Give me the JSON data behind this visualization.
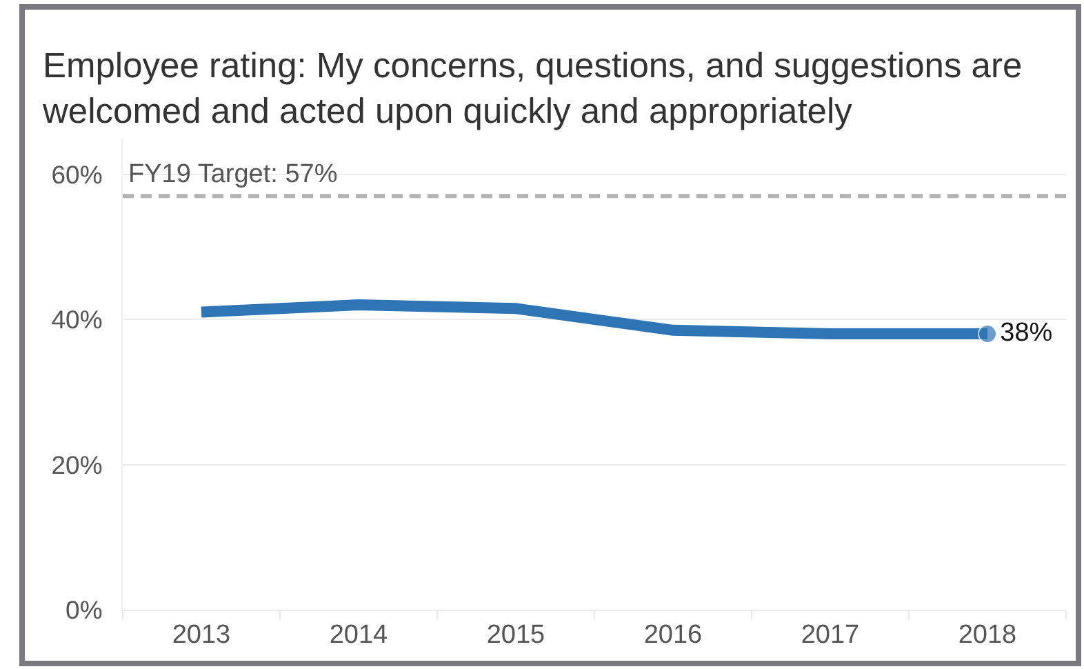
{
  "chart_data": {
    "type": "line",
    "title": "Employee rating: My concerns, questions, and suggestions are\nwelcomed and acted upon quickly and appropriately",
    "categories": [
      "2013",
      "2014",
      "2015",
      "2016",
      "2017",
      "2018"
    ],
    "series": [
      {
        "color": "#2e75b6",
        "values": [
          41,
          42,
          41.5,
          38.5,
          38,
          38
        ],
        "value_labels": [
          null,
          null,
          null,
          null,
          null,
          "38%"
        ]
      }
    ],
    "ylim": [
      0,
      65
    ],
    "yticks": [
      {
        "value": 0,
        "label": "0%"
      },
      {
        "value": 20,
        "label": "20%"
      },
      {
        "value": 40,
        "label": "40%"
      },
      {
        "value": 60,
        "label": "60%"
      }
    ],
    "ref_lines": [
      {
        "axis": "y",
        "value": 57,
        "label": "FY19 Target: 57%",
        "color": "#b3b3b3",
        "line_style": "dashed"
      }
    ],
    "grid": "y",
    "line_style": "solid"
  }
}
